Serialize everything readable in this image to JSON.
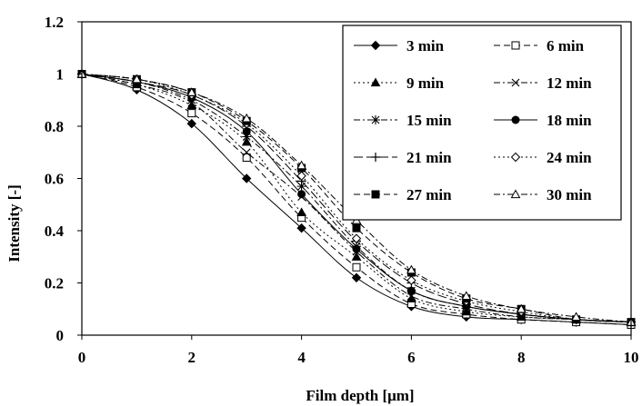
{
  "chart_data": {
    "type": "line",
    "xlabel": "Film depth [μm]",
    "ylabel": "Intensity [-]",
    "xlim": [
      0,
      10
    ],
    "ylim": [
      0,
      1.2
    ],
    "x_ticks": [
      "0",
      "2",
      "4",
      "6",
      "8",
      "10"
    ],
    "y_ticks": [
      "0",
      "0.2",
      "0.4",
      "0.6",
      "0.8",
      "1",
      "1.2"
    ],
    "grid": false,
    "legend_position": "top-right",
    "x": [
      0,
      1,
      2,
      3,
      4,
      5,
      6,
      7,
      8,
      9,
      10
    ],
    "series": [
      {
        "name": "3 min",
        "marker": "diamond-filled",
        "dash": "solid",
        "values": [
          1.0,
          0.94,
          0.81,
          0.6,
          0.41,
          0.22,
          0.11,
          0.07,
          0.06,
          0.05,
          0.04
        ]
      },
      {
        "name": "6 min",
        "marker": "square-open",
        "dash": "dash",
        "values": [
          1.0,
          0.95,
          0.85,
          0.68,
          0.45,
          0.26,
          0.12,
          0.08,
          0.06,
          0.05,
          0.04
        ]
      },
      {
        "name": "9 min",
        "marker": "triangle-filled",
        "dash": "dot",
        "values": [
          1.0,
          0.96,
          0.88,
          0.74,
          0.47,
          0.3,
          0.14,
          0.09,
          0.07,
          0.06,
          0.05
        ]
      },
      {
        "name": "12 min",
        "marker": "x",
        "dash": "dashdot",
        "values": [
          1.0,
          0.96,
          0.89,
          0.7,
          0.53,
          0.32,
          0.15,
          0.1,
          0.07,
          0.06,
          0.05
        ]
      },
      {
        "name": "15 min",
        "marker": "star",
        "dash": "dashdot",
        "values": [
          1.0,
          0.97,
          0.9,
          0.76,
          0.57,
          0.34,
          0.17,
          0.11,
          0.08,
          0.06,
          0.05
        ]
      },
      {
        "name": "18 min",
        "marker": "circle-filled",
        "dash": "solid",
        "values": [
          1.0,
          0.97,
          0.91,
          0.78,
          0.54,
          0.33,
          0.17,
          0.11,
          0.08,
          0.06,
          0.05
        ]
      },
      {
        "name": "21 min",
        "marker": "plus",
        "dash": "longdash",
        "values": [
          1.0,
          0.97,
          0.92,
          0.8,
          0.59,
          0.36,
          0.2,
          0.12,
          0.08,
          0.06,
          0.05
        ]
      },
      {
        "name": "24 min",
        "marker": "diamond-open",
        "dash": "dot",
        "values": [
          1.0,
          0.98,
          0.92,
          0.81,
          0.61,
          0.37,
          0.21,
          0.13,
          0.09,
          0.06,
          0.05
        ]
      },
      {
        "name": "27 min",
        "marker": "square-filled",
        "dash": "dash",
        "values": [
          1.0,
          0.98,
          0.93,
          0.82,
          0.64,
          0.41,
          0.24,
          0.14,
          0.1,
          0.06,
          0.05
        ]
      },
      {
        "name": "30 min",
        "marker": "triangle-open",
        "dash": "dashdot",
        "values": [
          1.0,
          0.98,
          0.93,
          0.83,
          0.65,
          0.44,
          0.25,
          0.15,
          0.1,
          0.07,
          0.05
        ]
      }
    ]
  }
}
